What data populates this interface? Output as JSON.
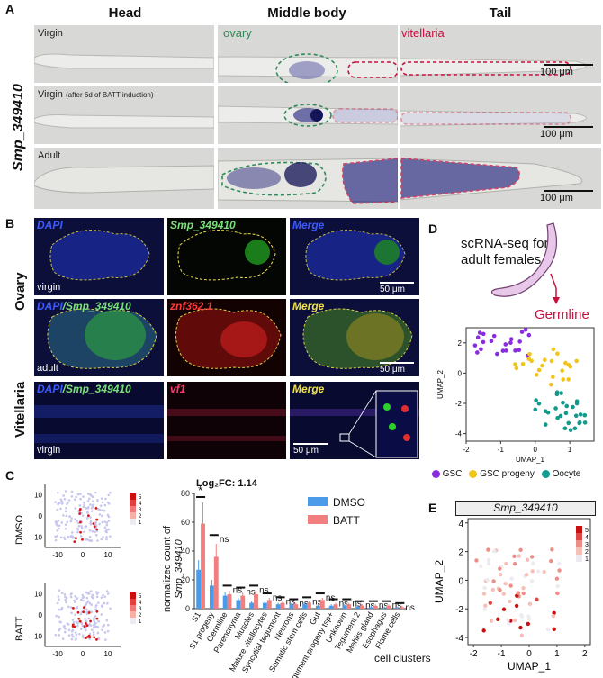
{
  "panelA": {
    "letter": "A",
    "gene_label": "Smp_349410",
    "columns": [
      "Head",
      "Middle body",
      "Tail"
    ],
    "rows": [
      {
        "label": "Virgin",
        "sublabel": ""
      },
      {
        "label": "Virgin",
        "sublabel": "(after 6d of BATT induction)"
      },
      {
        "label": "Adult",
        "sublabel": ""
      }
    ],
    "ovary_label": "ovary",
    "vitellaria_label": "vitellaria",
    "scale_bar": "100 μm",
    "ovary_color": "#2e8b57",
    "vitellaria_color": "#c8103e"
  },
  "panelB": {
    "letter": "B",
    "group_labels": [
      "Ovary",
      "Vitellaria"
    ],
    "row1": {
      "c1": "DAPI",
      "c2": "Smp_349410",
      "c3": "Merge",
      "corner": "virgin",
      "scale": "50 μm"
    },
    "row2": {
      "c1a": "DAPI",
      "c1b": "/Smp_349410",
      "c2": "znf362.1",
      "c3": "Merge",
      "corner": "adult",
      "scale": "50 μm"
    },
    "row3": {
      "c1a": "DAPI",
      "c1b": "/Smp_349410",
      "c2": "vf1",
      "c3": "Merge",
      "corner": "virgin",
      "scale": "50 μm"
    }
  },
  "panelC": {
    "letter": "C",
    "umap_labels": [
      "DMSO",
      "BATT"
    ],
    "umap_ticks_x": [
      "-10",
      "0",
      "10"
    ],
    "umap_ticks_y": [
      "10",
      "0",
      "-10"
    ],
    "colorbar_ticks": [
      "5",
      "4",
      "3",
      "2",
      "1"
    ],
    "log2fc": "Log₂FC: 1.14",
    "star": "*",
    "ns": "ns",
    "xlabel": "cell clusters",
    "ylabel_line1": "normalized count of",
    "ylabel_line2": "Smp_349410"
  },
  "panelD": {
    "letter": "D",
    "caption_line1": "scRNA-seq for",
    "caption_line2": "adult females",
    "germline": "Germline",
    "xlabel": "UMAP_1",
    "ylabel": "UMAP_2",
    "xticks": [
      "-2",
      "-1",
      "0",
      "1"
    ],
    "yticks": [
      "2",
      "0",
      "-2",
      "-4"
    ],
    "legend": [
      {
        "label": "GSC",
        "color": "#8a2be2"
      },
      {
        "label": "GSC progeny",
        "color": "#f0c419"
      },
      {
        "label": "Oocyte",
        "color": "#139a8c"
      }
    ]
  },
  "panelE": {
    "letter": "E",
    "title": "Smp_349410",
    "xlabel": "UMAP_1",
    "ylabel": "UMAP_2",
    "xticks": [
      "-2",
      "-1",
      "0",
      "1",
      "2"
    ],
    "yticks": [
      "4",
      "2",
      "0",
      "-2",
      "-4"
    ],
    "colorbar_ticks": [
      "5",
      "4",
      "3",
      "2",
      "1"
    ]
  },
  "chart_data": {
    "type": "bar",
    "categories": [
      "S1",
      "S1 progeny",
      "Germline",
      "Parenchyma",
      "Muscles",
      "Mature vitellocytes",
      "Syncytial tegument",
      "Neurons",
      "Somatic stem cells",
      "Gut",
      "Tegument progeny tsp+",
      "Unknown",
      "Tegument 2",
      "Mehlis gland",
      "Esophagus",
      "Flame cells"
    ],
    "series": [
      {
        "name": "DMSO",
        "color": "#4a9be8",
        "values": [
          27,
          16,
          9,
          6,
          4,
          4,
          3,
          3,
          3,
          2,
          2,
          2,
          1.5,
          1,
          0.5,
          0.5
        ]
      },
      {
        "name": "BATT",
        "color": "#f08080",
        "values": [
          59,
          36,
          10,
          9,
          10,
          6,
          4,
          3,
          4,
          6,
          3,
          3,
          2,
          2,
          2,
          1
        ]
      }
    ],
    "ylim": [
      0,
      80
    ],
    "yticks": [
      0,
      20,
      40,
      60,
      80
    ],
    "xlabel": "cell clusters",
    "ylabel": "normalized count of Smp_349410"
  }
}
